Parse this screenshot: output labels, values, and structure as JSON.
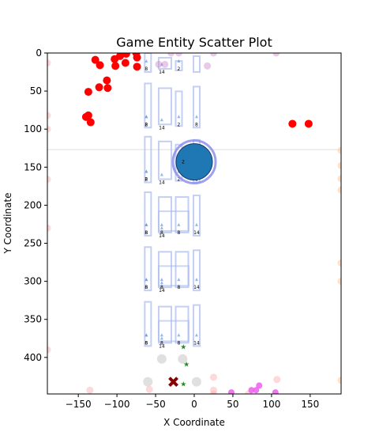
{
  "chart_data": {
    "type": "scatter",
    "title": "Game Entity Scatter Plot",
    "xlabel": "X Coordinate",
    "ylabel": "Y Coordinate",
    "xlim": [
      -190,
      190
    ],
    "ylim": [
      448,
      0
    ],
    "y_inverted": true,
    "xticks": [
      -150,
      -100,
      -50,
      0,
      50,
      100,
      150
    ],
    "yticks": [
      0,
      50,
      100,
      150,
      200,
      250,
      300,
      350,
      400
    ],
    "grid": false,
    "reference_line": {
      "y": 127
    },
    "series": [
      {
        "kind": "red-dots",
        "color": "#ff0000",
        "points": [
          [
            -128,
            9
          ],
          [
            -122,
            16
          ],
          [
            -137,
            51
          ],
          [
            -123,
            45
          ],
          [
            -113,
            36
          ],
          [
            -112,
            46
          ],
          [
            -140,
            84
          ],
          [
            -137,
            82
          ],
          [
            -134,
            91
          ],
          [
            -103,
            8
          ],
          [
            -96,
            4
          ],
          [
            -88,
            1
          ],
          [
            -75,
            0
          ],
          [
            -74,
            6
          ],
          [
            -102,
            17
          ],
          [
            -89,
            13
          ],
          [
            -74,
            18
          ],
          [
            127,
            93
          ],
          [
            148,
            93
          ]
        ]
      },
      {
        "kind": "pink-faint",
        "color": "#ffaaaa",
        "points": [
          [
            -190,
            13
          ],
          [
            -190,
            82
          ],
          [
            -190,
            100
          ],
          [
            -190,
            166
          ],
          [
            -190,
            230
          ],
          [
            -190,
            390
          ],
          [
            -135,
            443
          ],
          [
            -58,
            442
          ],
          [
            25,
            426
          ],
          [
            25,
            443
          ],
          [
            25,
            448
          ],
          [
            107,
            429
          ],
          [
            70,
            448
          ]
        ]
      },
      {
        "kind": "purple-faint",
        "color": "#cc88cc",
        "points": [
          [
            -46,
            15
          ],
          [
            -38,
            15
          ],
          [
            -30,
            0
          ],
          [
            -20,
            0
          ],
          [
            17,
            17
          ],
          [
            25,
            0
          ],
          [
            106,
            0
          ]
        ]
      },
      {
        "kind": "orange-faint",
        "color": "#ffbb88",
        "points": [
          [
            190,
            128
          ],
          [
            190,
            148
          ],
          [
            190,
            165
          ],
          [
            190,
            180
          ],
          [
            190,
            276
          ],
          [
            190,
            300
          ],
          [
            190,
            430
          ]
        ]
      },
      {
        "kind": "magenta",
        "color": "#ee66ee",
        "points": [
          [
            48,
            446
          ],
          [
            74,
            443
          ],
          [
            80,
            443
          ],
          [
            84,
            437
          ],
          [
            105,
            446
          ]
        ]
      },
      {
        "kind": "gray-circles",
        "color": "#cccccc",
        "points": [
          [
            -60,
            432
          ],
          [
            -42,
            402
          ],
          [
            -15,
            402
          ],
          [
            3,
            432
          ]
        ]
      },
      {
        "kind": "green-stars",
        "color": "#228b22",
        "points": [
          [
            -14,
            386
          ],
          [
            -10,
            409
          ],
          [
            -14,
            435
          ]
        ]
      }
    ],
    "player": {
      "x": 0,
      "y": 143,
      "color": "#1f77b4",
      "label": "2"
    },
    "enemy": {
      "x": -27,
      "y": 432,
      "color": "#8b0000"
    },
    "obstacle_rows": [
      {
        "y_top": 0,
        "y_bottom": 25,
        "labels": [
          "8",
          "14",
          "2"
        ]
      },
      {
        "y_top": 40,
        "y_bottom": 98,
        "labels": [
          "8",
          "14",
          "2",
          "8",
          "2"
        ]
      },
      {
        "y_top": 110,
        "y_bottom": 170,
        "labels": [
          "8",
          "14",
          "2",
          "8",
          "2"
        ]
      },
      {
        "y_top": 183,
        "y_bottom": 240,
        "labels": [
          "8",
          "14",
          "8",
          "14",
          "8",
          "8"
        ]
      },
      {
        "y_top": 255,
        "y_bottom": 312,
        "labels": [
          "8",
          "14",
          "8",
          "14",
          "8",
          "8"
        ]
      },
      {
        "y_top": 327,
        "y_bottom": 385,
        "labels": [
          "8",
          "14",
          "8",
          "14",
          "8",
          "8"
        ]
      }
    ]
  }
}
